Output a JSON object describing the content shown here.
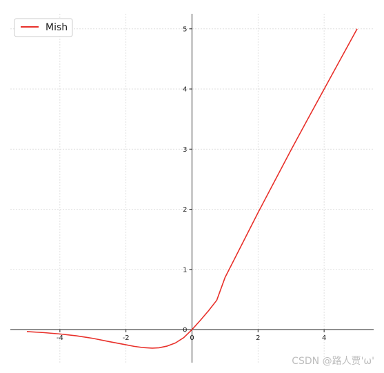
{
  "chart_data": {
    "type": "line",
    "title": "",
    "xlabel": "",
    "ylabel": "",
    "xlim": [
      -5.5,
      5.5
    ],
    "ylim": [
      -0.55,
      5.25
    ],
    "x_ticks": [
      -4,
      -2,
      0,
      2,
      4
    ],
    "y_ticks": [
      0,
      1,
      2,
      3,
      4,
      5
    ],
    "x_tick_labels": [
      "-4",
      "-2",
      "0",
      "2",
      "4"
    ],
    "y_tick_labels": [
      "0",
      "1",
      "2",
      "3",
      "4",
      "5"
    ],
    "grid": true,
    "spines": "centered at origin",
    "legend": {
      "position": "top-left"
    },
    "series": [
      {
        "name": "Mish",
        "color": "#e8302a",
        "x": [
          -5,
          -4.5,
          -4,
          -3.5,
          -3,
          -2.5,
          -2,
          -1.75,
          -1.5,
          -1.25,
          -1.2,
          -1,
          -0.75,
          -0.5,
          -0.25,
          0,
          0.25,
          0.5,
          0.75,
          1,
          1.5,
          2,
          2.5,
          3,
          3.5,
          4,
          4.5,
          5
        ],
        "y": [
          -0.034,
          -0.05,
          -0.073,
          -0.104,
          -0.146,
          -0.201,
          -0.253,
          -0.279,
          -0.298,
          -0.307,
          -0.309,
          -0.303,
          -0.274,
          -0.222,
          -0.134,
          0,
          0.152,
          0.313,
          0.488,
          0.865,
          1.404,
          1.944,
          2.466,
          2.987,
          3.495,
          3.997,
          4.499,
          5.0
        ]
      }
    ]
  },
  "legend": {
    "label": "Mish"
  },
  "watermark": {
    "text": "CSDN @路人贾'ω'"
  }
}
